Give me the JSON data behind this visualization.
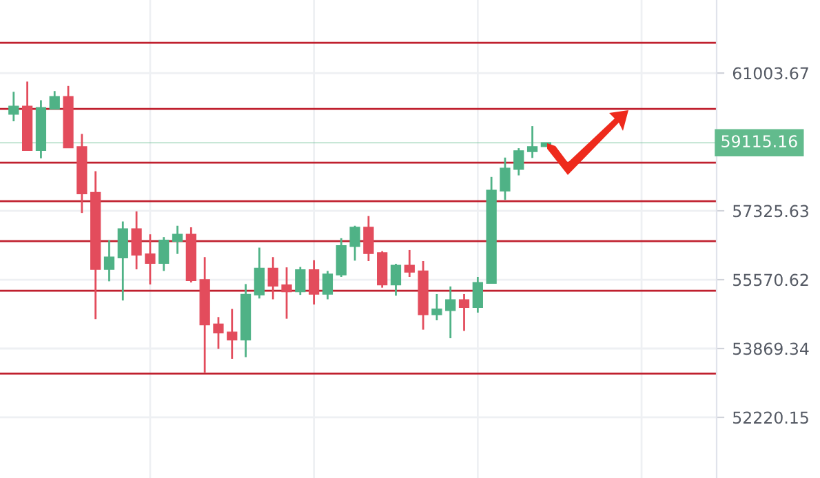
{
  "chart_data": {
    "type": "candlestick",
    "log": "y",
    "grid": true,
    "categories": [
      null,
      null,
      null,
      null,
      null,
      null,
      null,
      null,
      null,
      null,
      null,
      null,
      null,
      null,
      null,
      null,
      null,
      null,
      null,
      null,
      null,
      null,
      null,
      null,
      null,
      null,
      null,
      null,
      null,
      null,
      null,
      null,
      null,
      null,
      null,
      null,
      null,
      null,
      null,
      null,
      null,
      null,
      null,
      null,
      null,
      null,
      null,
      null,
      null,
      null,
      null,
      null
    ],
    "ohlc": [
      [
        59880,
        60490,
        59690,
        60100
      ],
      [
        60100,
        60770,
        58910,
        58910
      ],
      [
        58910,
        60260,
        58700,
        60060
      ],
      [
        60020,
        60510,
        60020,
        60360
      ],
      [
        60360,
        60650,
        58980,
        58980
      ],
      [
        59010,
        59350,
        57270,
        57770
      ],
      [
        57800,
        58360,
        54590,
        55830
      ],
      [
        55830,
        56570,
        55530,
        56140
      ],
      [
        56120,
        57050,
        55050,
        56860
      ],
      [
        56860,
        57310,
        55830,
        56190
      ],
      [
        56220,
        56720,
        55450,
        55980
      ],
      [
        55980,
        56650,
        55790,
        56570
      ],
      [
        56540,
        56940,
        56220,
        56720
      ],
      [
        56720,
        56900,
        55500,
        55550
      ],
      [
        55570,
        56140,
        53290,
        54450
      ],
      [
        54470,
        54640,
        53860,
        54250
      ],
      [
        54270,
        54840,
        53620,
        54080
      ],
      [
        54080,
        55460,
        53660,
        55200
      ],
      [
        55190,
        56380,
        55100,
        55860
      ],
      [
        55860,
        56140,
        55080,
        55410
      ],
      [
        55440,
        55880,
        54600,
        55270
      ],
      [
        55270,
        55890,
        55190,
        55820
      ],
      [
        55820,
        56060,
        54950,
        55210
      ],
      [
        55210,
        55790,
        55080,
        55710
      ],
      [
        55690,
        56620,
        55640,
        56430
      ],
      [
        56410,
        56940,
        56050,
        56900
      ],
      [
        56900,
        57190,
        56040,
        56230
      ],
      [
        56250,
        56290,
        55370,
        55440
      ],
      [
        55440,
        55970,
        55170,
        55930
      ],
      [
        55930,
        56320,
        55640,
        55760
      ],
      [
        55790,
        56040,
        54330,
        54700
      ],
      [
        54700,
        55210,
        54560,
        54840
      ],
      [
        54800,
        55400,
        54120,
        55070
      ],
      [
        55070,
        55210,
        54300,
        54880
      ],
      [
        54880,
        55640,
        54750,
        55500
      ],
      [
        55480,
        58210,
        55480,
        57860
      ],
      [
        57840,
        58720,
        57610,
        58440
      ],
      [
        58410,
        58970,
        58250,
        58900
      ],
      [
        58880,
        59560,
        58710,
        59010
      ],
      [
        59010,
        59115,
        59010,
        59115
      ],
      null,
      null,
      null,
      null,
      null,
      null,
      null,
      null,
      null,
      null,
      null,
      null
    ],
    "colors": [
      "#4fb286",
      "#e34c5c",
      "#4fb286",
      "#4fb286",
      "#e34c5c",
      "#e34c5c",
      "#e34c5c",
      "#4fb286",
      "#4fb286",
      "#e34c5c",
      "#e34c5c",
      "#4fb286",
      "#4fb286",
      "#e34c5c",
      "#e34c5c",
      "#e34c5c",
      "#e34c5c",
      "#4fb286",
      "#4fb286",
      "#e34c5c",
      "#e34c5c",
      "#4fb286",
      "#e34c5c",
      "#4fb286",
      "#4fb286",
      "#4fb286",
      "#e34c5c",
      "#e34c5c",
      "#4fb286",
      "#e34c5c",
      "#e34c5c",
      "#4fb286",
      "#4fb286",
      "#e34c5c",
      "#4fb286",
      "#4fb286",
      "#4fb286",
      "#4fb286",
      "#4fb286",
      "#4fb286",
      null,
      null,
      null,
      null,
      null,
      null,
      null,
      null,
      null,
      null,
      null,
      null
    ],
    "ylim": [
      50810,
      63050
    ],
    "yticks": [
      52220.15,
      53869.34,
      55570.62,
      57325.63,
      61003.67
    ],
    "ref_lines": [
      {
        "axis": "y",
        "value": 61844,
        "color": "#c0202e"
      },
      {
        "axis": "y",
        "value": 60025,
        "color": "#c0202e"
      },
      {
        "axis": "y",
        "value": 58587,
        "color": "#c0202e"
      },
      {
        "axis": "y",
        "value": 57575,
        "color": "#c0202e"
      },
      {
        "axis": "y",
        "value": 56544,
        "color": "#c0202e"
      },
      {
        "axis": "y",
        "value": 55294,
        "color": "#c0202e"
      },
      {
        "axis": "y",
        "value": 53263,
        "color": "#c0202e"
      },
      {
        "axis": "y",
        "value": 59115.16,
        "label": "59115.16",
        "color": "#62bb8d"
      }
    ]
  }
}
